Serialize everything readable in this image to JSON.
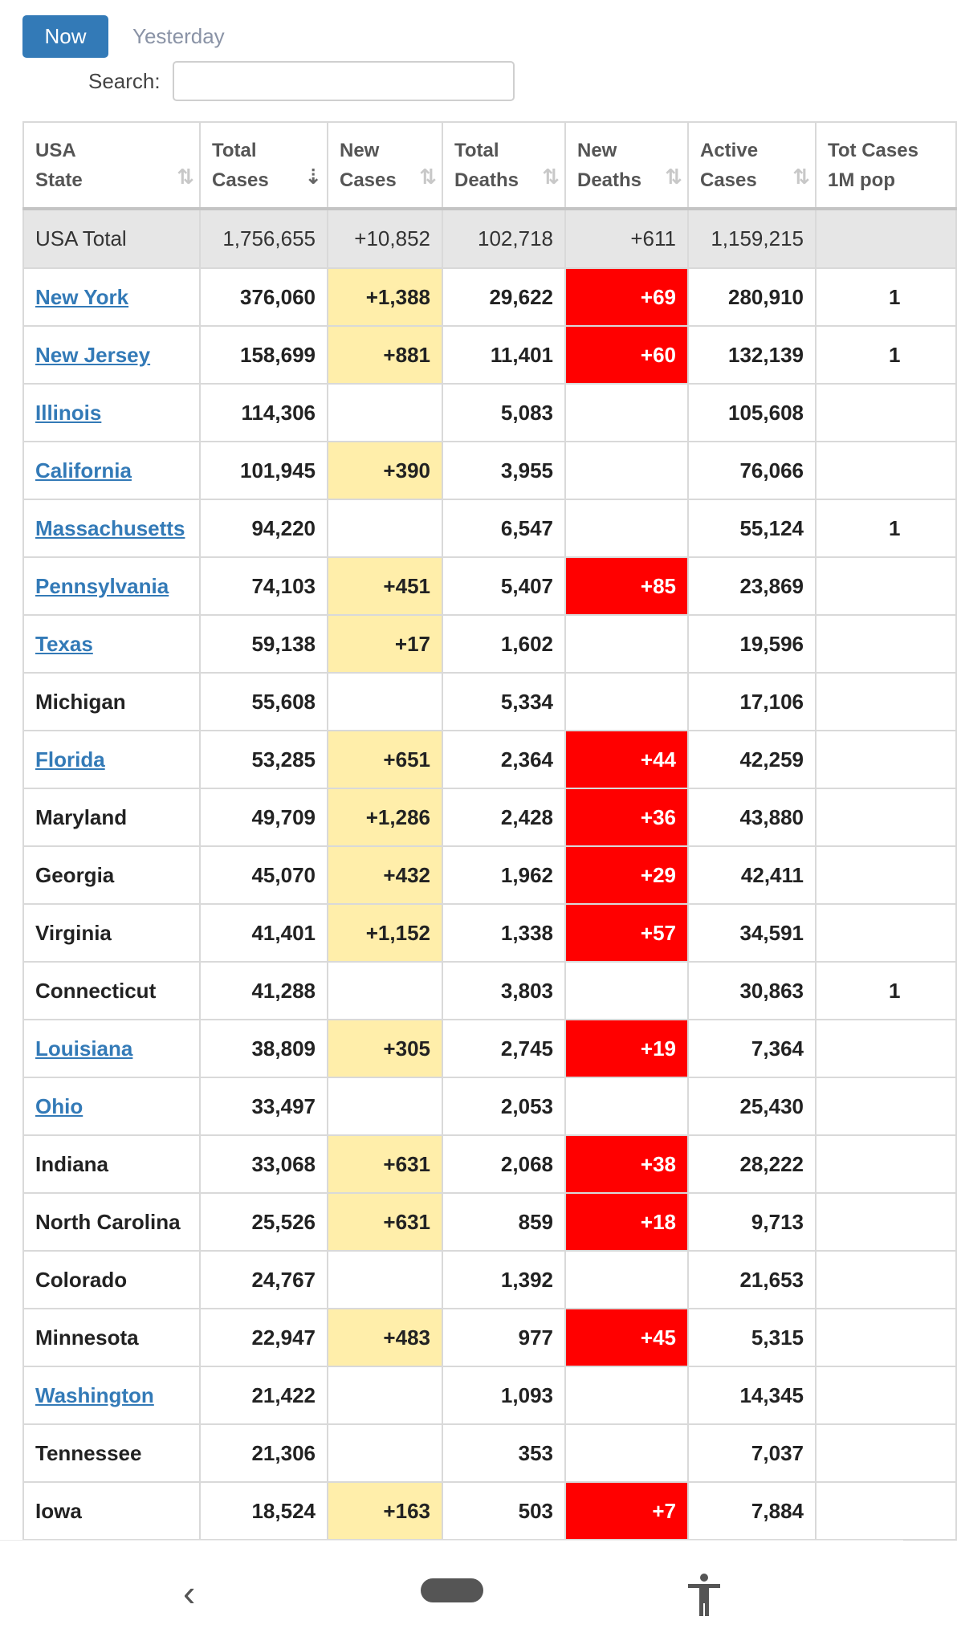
{
  "tabs": {
    "now": "Now",
    "yesterday": "Yesterday"
  },
  "search": {
    "label": "Search:",
    "value": ""
  },
  "table": {
    "headers": [
      {
        "text": "USA\nState",
        "sort": "⇅"
      },
      {
        "text": "Total\nCases",
        "sort": "⇣"
      },
      {
        "text": "New\nCases",
        "sort": "⇅"
      },
      {
        "text": "Total\nDeaths",
        "sort": "⇅"
      },
      {
        "text": "New\nDeaths",
        "sort": "⇅"
      },
      {
        "text": "Active\nCases",
        "sort": "⇅"
      },
      {
        "text": "Tot Cases\n1M pop",
        "sort": ""
      }
    ],
    "total_row": {
      "state": "USA Total",
      "total_cases": "1,756,655",
      "new_cases": "+10,852",
      "total_deaths": "102,718",
      "new_deaths": "+611",
      "active_cases": "1,159,215",
      "per_million": ""
    },
    "rows": [
      {
        "state": "New York",
        "link": true,
        "total_cases": "376,060",
        "new_cases": "+1,388",
        "total_deaths": "29,622",
        "new_deaths": "+69",
        "active_cases": "280,910",
        "per_million": "1"
      },
      {
        "state": "New Jersey",
        "link": true,
        "total_cases": "158,699",
        "new_cases": "+881",
        "total_deaths": "11,401",
        "new_deaths": "+60",
        "active_cases": "132,139",
        "per_million": "1"
      },
      {
        "state": "Illinois",
        "link": true,
        "total_cases": "114,306",
        "new_cases": "",
        "total_deaths": "5,083",
        "new_deaths": "",
        "active_cases": "105,608",
        "per_million": ""
      },
      {
        "state": "California",
        "link": true,
        "total_cases": "101,945",
        "new_cases": "+390",
        "total_deaths": "3,955",
        "new_deaths": "",
        "active_cases": "76,066",
        "per_million": ""
      },
      {
        "state": "Massachusetts",
        "link": true,
        "total_cases": "94,220",
        "new_cases": "",
        "total_deaths": "6,547",
        "new_deaths": "",
        "active_cases": "55,124",
        "per_million": "1"
      },
      {
        "state": "Pennsylvania",
        "link": true,
        "total_cases": "74,103",
        "new_cases": "+451",
        "total_deaths": "5,407",
        "new_deaths": "+85",
        "active_cases": "23,869",
        "per_million": ""
      },
      {
        "state": "Texas",
        "link": true,
        "total_cases": "59,138",
        "new_cases": "+17",
        "total_deaths": "1,602",
        "new_deaths": "",
        "active_cases": "19,596",
        "per_million": ""
      },
      {
        "state": "Michigan",
        "link": false,
        "total_cases": "55,608",
        "new_cases": "",
        "total_deaths": "5,334",
        "new_deaths": "",
        "active_cases": "17,106",
        "per_million": ""
      },
      {
        "state": "Florida",
        "link": true,
        "total_cases": "53,285",
        "new_cases": "+651",
        "total_deaths": "2,364",
        "new_deaths": "+44",
        "active_cases": "42,259",
        "per_million": ""
      },
      {
        "state": "Maryland",
        "link": false,
        "total_cases": "49,709",
        "new_cases": "+1,286",
        "total_deaths": "2,428",
        "new_deaths": "+36",
        "active_cases": "43,880",
        "per_million": ""
      },
      {
        "state": "Georgia",
        "link": false,
        "total_cases": "45,070",
        "new_cases": "+432",
        "total_deaths": "1,962",
        "new_deaths": "+29",
        "active_cases": "42,411",
        "per_million": ""
      },
      {
        "state": "Virginia",
        "link": false,
        "total_cases": "41,401",
        "new_cases": "+1,152",
        "total_deaths": "1,338",
        "new_deaths": "+57",
        "active_cases": "34,591",
        "per_million": ""
      },
      {
        "state": "Connecticut",
        "link": false,
        "total_cases": "41,288",
        "new_cases": "",
        "total_deaths": "3,803",
        "new_deaths": "",
        "active_cases": "30,863",
        "per_million": "1"
      },
      {
        "state": "Louisiana",
        "link": true,
        "total_cases": "38,809",
        "new_cases": "+305",
        "total_deaths": "2,745",
        "new_deaths": "+19",
        "active_cases": "7,364",
        "per_million": ""
      },
      {
        "state": "Ohio",
        "link": true,
        "total_cases": "33,497",
        "new_cases": "",
        "total_deaths": "2,053",
        "new_deaths": "",
        "active_cases": "25,430",
        "per_million": ""
      },
      {
        "state": "Indiana",
        "link": false,
        "total_cases": "33,068",
        "new_cases": "+631",
        "total_deaths": "2,068",
        "new_deaths": "+38",
        "active_cases": "28,222",
        "per_million": ""
      },
      {
        "state": "North Carolina",
        "link": false,
        "total_cases": "25,526",
        "new_cases": "+631",
        "total_deaths": "859",
        "new_deaths": "+18",
        "active_cases": "9,713",
        "per_million": ""
      },
      {
        "state": "Colorado",
        "link": false,
        "total_cases": "24,767",
        "new_cases": "",
        "total_deaths": "1,392",
        "new_deaths": "",
        "active_cases": "21,653",
        "per_million": ""
      },
      {
        "state": "Minnesota",
        "link": false,
        "total_cases": "22,947",
        "new_cases": "+483",
        "total_deaths": "977",
        "new_deaths": "+45",
        "active_cases": "5,315",
        "per_million": ""
      },
      {
        "state": "Washington",
        "link": true,
        "total_cases": "21,422",
        "new_cases": "",
        "total_deaths": "1,093",
        "new_deaths": "",
        "active_cases": "14,345",
        "per_million": ""
      },
      {
        "state": "Tennessee",
        "link": false,
        "total_cases": "21,306",
        "new_cases": "",
        "total_deaths": "353",
        "new_deaths": "",
        "active_cases": "7,037",
        "per_million": ""
      },
      {
        "state": "Iowa",
        "link": false,
        "total_cases": "18,524",
        "new_cases": "+163",
        "total_deaths": "503",
        "new_deaths": "+7",
        "active_cases": "7,884",
        "per_million": ""
      }
    ]
  },
  "colors": {
    "accent": "#337ab7",
    "new_cases_highlight": "#ffeeaa",
    "new_deaths_highlight": "#ff0000",
    "total_row_bg": "#e6e6e6"
  },
  "navbar": {
    "icons": [
      "back-icon",
      "home-pill-icon",
      "accessibility-icon"
    ]
  }
}
